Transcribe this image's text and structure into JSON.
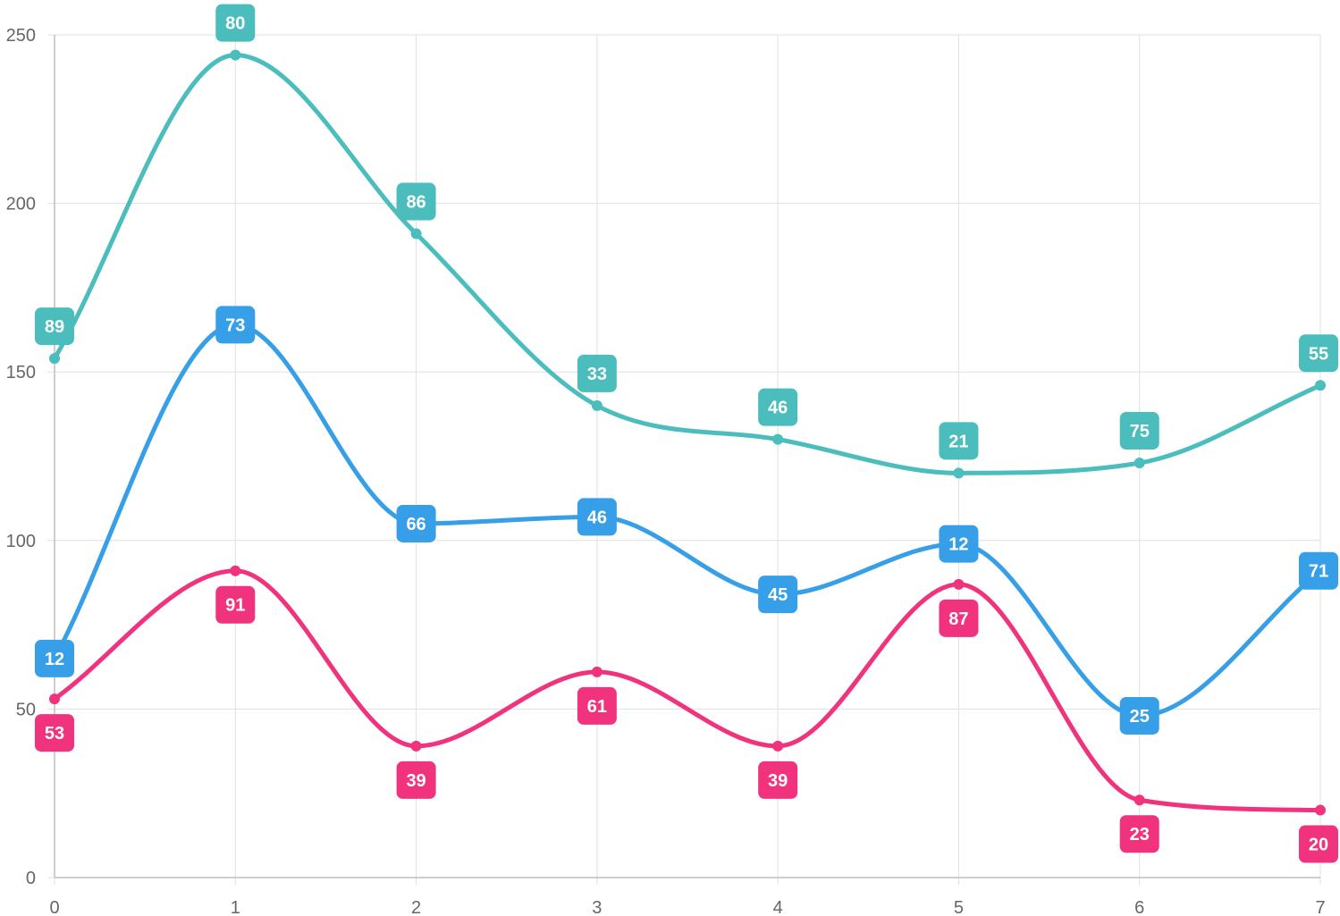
{
  "chart_data": {
    "type": "line",
    "title": "",
    "xlabel": "",
    "ylabel": "",
    "x": [
      0,
      1,
      2,
      3,
      4,
      5,
      6,
      7
    ],
    "ylim": [
      0,
      250
    ],
    "y_ticks": [
      0,
      50,
      100,
      150,
      200,
      250
    ],
    "grid": true,
    "stacked": true,
    "smooth": true,
    "series": [
      {
        "values": [
          53,
          91,
          39,
          61,
          39,
          87,
          23,
          20
        ],
        "totals": [
          53,
          91,
          39,
          61,
          39,
          87,
          23,
          20
        ],
        "color": "#f0337c",
        "label_position": "below"
      },
      {
        "values": [
          12,
          73,
          66,
          46,
          45,
          12,
          25,
          71
        ],
        "totals": [
          65,
          164,
          105,
          107,
          84,
          99,
          48,
          91
        ],
        "color": "#369fe8",
        "label_position": "center"
      },
      {
        "values": [
          89,
          80,
          86,
          33,
          46,
          21,
          75,
          55
        ],
        "totals": [
          154,
          244,
          191,
          140,
          130,
          120,
          123,
          146
        ],
        "color": "#4bbdbd",
        "label_position": "above"
      }
    ]
  }
}
